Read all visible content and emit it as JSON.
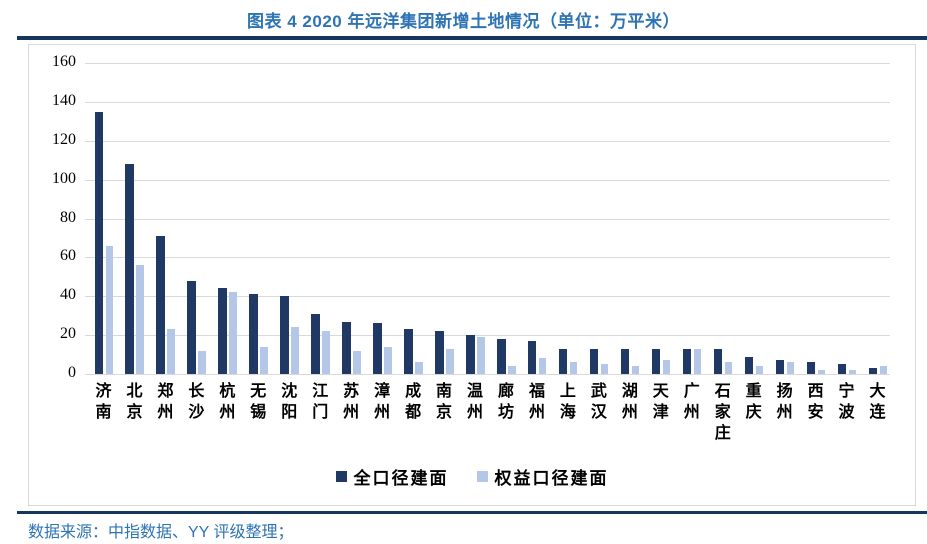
{
  "page": {
    "title": "图表 4 2020 年远洋集团新增土地情况（单位：万平米）",
    "source": "数据来源：中指数据、YY 评级整理；"
  },
  "colors": {
    "title_blue": "#2E74B5",
    "footer_blue": "#2E74B5",
    "rule_navy": "#17365D",
    "grid_gray": "#D9D9D9",
    "series1_dark_navy": "#1F3864",
    "series2_light_blue": "#B4C7E7"
  },
  "chart_data": {
    "type": "bar",
    "title": "图表 4 2020 年远洋集团新增土地情况（单位：万平米）",
    "categories": [
      "济南",
      "北京",
      "郑州",
      "长沙",
      "杭州",
      "无锡",
      "沈阳",
      "江门",
      "苏州",
      "漳州",
      "成都",
      "南京",
      "温州",
      "廊坊",
      "福州",
      "上海",
      "武汉",
      "湖州",
      "天津",
      "广州",
      "石家庄",
      "重庆",
      "扬州",
      "西安",
      "宁波",
      "大连"
    ],
    "series": [
      {
        "name": "全口径建面",
        "color": "#1F3864",
        "values": [
          135,
          108,
          71,
          48,
          44,
          41,
          40,
          31,
          27,
          26,
          23,
          22,
          20,
          18,
          17,
          13,
          13,
          13,
          13,
          13,
          13,
          9,
          7,
          6,
          5,
          3
        ]
      },
      {
        "name": "权益口径建面",
        "color": "#B4C7E7",
        "values": [
          66,
          56,
          23,
          12,
          42,
          14,
          24,
          22,
          12,
          14,
          6,
          13,
          19,
          4,
          8,
          6,
          5,
          4,
          7,
          13,
          6,
          4,
          6,
          2,
          2,
          4
        ]
      }
    ],
    "xlabel": "",
    "ylabel": "",
    "ylim": [
      0,
      160
    ],
    "yticks": [
      0,
      20,
      40,
      60,
      80,
      100,
      120,
      140,
      160
    ],
    "grid": true,
    "legend_position": "bottom"
  }
}
